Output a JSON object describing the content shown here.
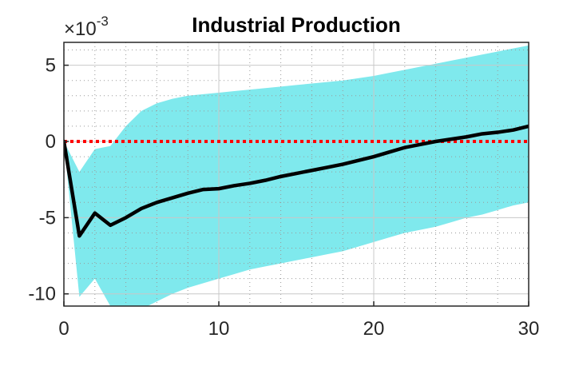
{
  "chart_data": {
    "type": "line",
    "title": "Industrial Production",
    "xlabel": "",
    "ylabel": "",
    "y_multiplier_label": "×10",
    "y_multiplier_exponent": "-3",
    "y_multiplier": 0.001,
    "xlim": [
      0,
      30
    ],
    "ylim": [
      -10.8,
      6.5
    ],
    "x_ticks": [
      0,
      10,
      20,
      30
    ],
    "y_ticks": [
      -10,
      -5,
      0,
      5
    ],
    "grid": true,
    "legend": "none",
    "x": [
      0,
      1,
      2,
      3,
      4,
      5,
      6,
      7,
      8,
      9,
      10,
      11,
      12,
      13,
      14,
      15,
      16,
      17,
      18,
      19,
      20,
      21,
      22,
      23,
      24,
      25,
      26,
      27,
      28,
      29,
      30
    ],
    "series": [
      {
        "values": [
          0,
          -6.2,
          -4.7,
          -5.5,
          -5.0,
          -4.4,
          -4.0,
          -3.7,
          -3.4,
          -3.15,
          -3.1,
          -2.9,
          -2.75,
          -2.55,
          -2.3,
          -2.1,
          -1.9,
          -1.7,
          -1.5,
          -1.25,
          -1.0,
          -0.7,
          -0.4,
          -0.2,
          0.0,
          0.15,
          0.3,
          0.5,
          0.6,
          0.75,
          1.0
        ],
        "color": "#000000"
      }
    ],
    "band": {
      "upper": [
        0,
        -2.0,
        -0.5,
        -0.3,
        1.0,
        2.0,
        2.5,
        2.8,
        3.0,
        3.1,
        3.2,
        3.3,
        3.4,
        3.5,
        3.6,
        3.7,
        3.8,
        3.9,
        4.0,
        4.15,
        4.3,
        4.5,
        4.7,
        4.9,
        5.1,
        5.3,
        5.5,
        5.7,
        5.9,
        6.1,
        6.3
      ],
      "lower": [
        0,
        -10.2,
        -9.0,
        -10.8,
        -11.0,
        -11.0,
        -10.5,
        -10.0,
        -9.6,
        -9.3,
        -9.0,
        -8.7,
        -8.4,
        -8.2,
        -8.0,
        -7.8,
        -7.6,
        -7.4,
        -7.2,
        -6.9,
        -6.6,
        -6.3,
        -6.0,
        -5.8,
        -5.6,
        -5.3,
        -5.0,
        -4.8,
        -4.5,
        -4.2,
        -4.0
      ],
      "color": "#7FE9ED"
    },
    "reference_line": {
      "y": 0,
      "color": "#FF0000",
      "style": "dotted"
    }
  }
}
